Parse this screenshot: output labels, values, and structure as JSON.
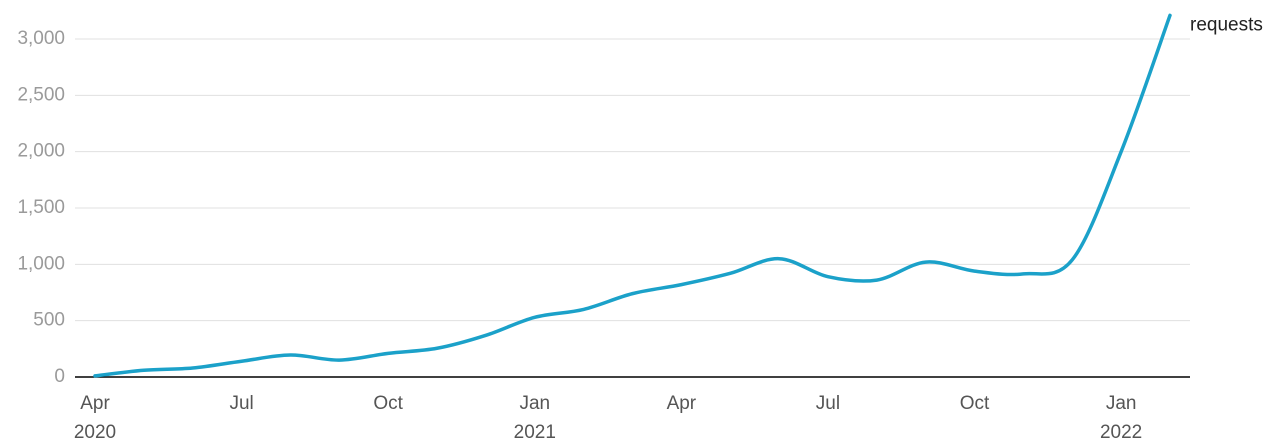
{
  "chart_data": {
    "type": "line",
    "categories": [
      "Apr",
      null,
      null,
      "Jul",
      null,
      null,
      "Oct",
      null,
      null,
      "Jan",
      null,
      null,
      "Apr",
      null,
      null,
      "Jul",
      null,
      null,
      "Oct",
      null,
      null,
      "Jan",
      null
    ],
    "year_labels": [
      "2020",
      null,
      null,
      null,
      null,
      null,
      null,
      null,
      null,
      "2021",
      null,
      null,
      null,
      null,
      null,
      null,
      null,
      null,
      null,
      null,
      null,
      "2022",
      null
    ],
    "series": [
      {
        "name": "requests",
        "color": "#1ba1c9",
        "values": [
          10,
          60,
          80,
          140,
          195,
          150,
          210,
          255,
          370,
          530,
          600,
          740,
          820,
          920,
          1050,
          890,
          860,
          1020,
          940,
          915,
          1040,
          2000,
          3210
        ]
      }
    ],
    "ylim": [
      0,
      3000
    ],
    "yticks": [
      0,
      500,
      {
        "value": 1000,
        "label": "1,000"
      },
      {
        "value": 1500,
        "label": "1,500"
      },
      {
        "value": 2000,
        "label": "2,000"
      },
      {
        "value": 2500,
        "label": "2,500"
      },
      {
        "value": 3000,
        "label": "3,000"
      }
    ],
    "grid": true
  }
}
